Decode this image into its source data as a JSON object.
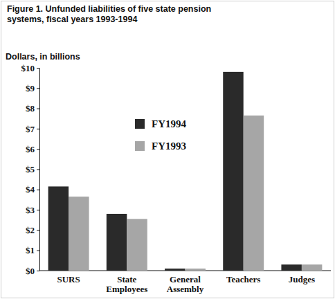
{
  "chart_data": {
    "type": "bar",
    "title": "Figure 1. Unfunded liabilities of five state pension systems, fiscal years 1993-1994",
    "y_label": "Dollars, in billions",
    "categories": [
      "SURS",
      "State Employees",
      "General Assembly",
      "Teachers",
      "Judges"
    ],
    "series": [
      {
        "name": "FY1994",
        "color": "#2a2a2a",
        "values": [
          4.15,
          2.8,
          0.1,
          9.8,
          0.3
        ]
      },
      {
        "name": "FY1993",
        "color": "#a6a6a6",
        "values": [
          3.65,
          2.55,
          0.1,
          7.65,
          0.3
        ]
      }
    ],
    "ylim": [
      0,
      10
    ],
    "yticks": [
      {
        "value": 0,
        "label": "$0"
      },
      {
        "value": 1,
        "label": "$1"
      },
      {
        "value": 2,
        "label": "$2"
      },
      {
        "value": 3,
        "label": "$3"
      },
      {
        "value": 4,
        "label": "$4"
      },
      {
        "value": 5,
        "label": "$5"
      },
      {
        "value": 6,
        "label": "$6"
      },
      {
        "value": 7,
        "label": "$7"
      },
      {
        "value": 8,
        "label": "$8"
      },
      {
        "value": 9,
        "label": "$9"
      },
      {
        "value": 10,
        "label": "$10"
      }
    ],
    "grid": false,
    "legend": "upper left"
  }
}
